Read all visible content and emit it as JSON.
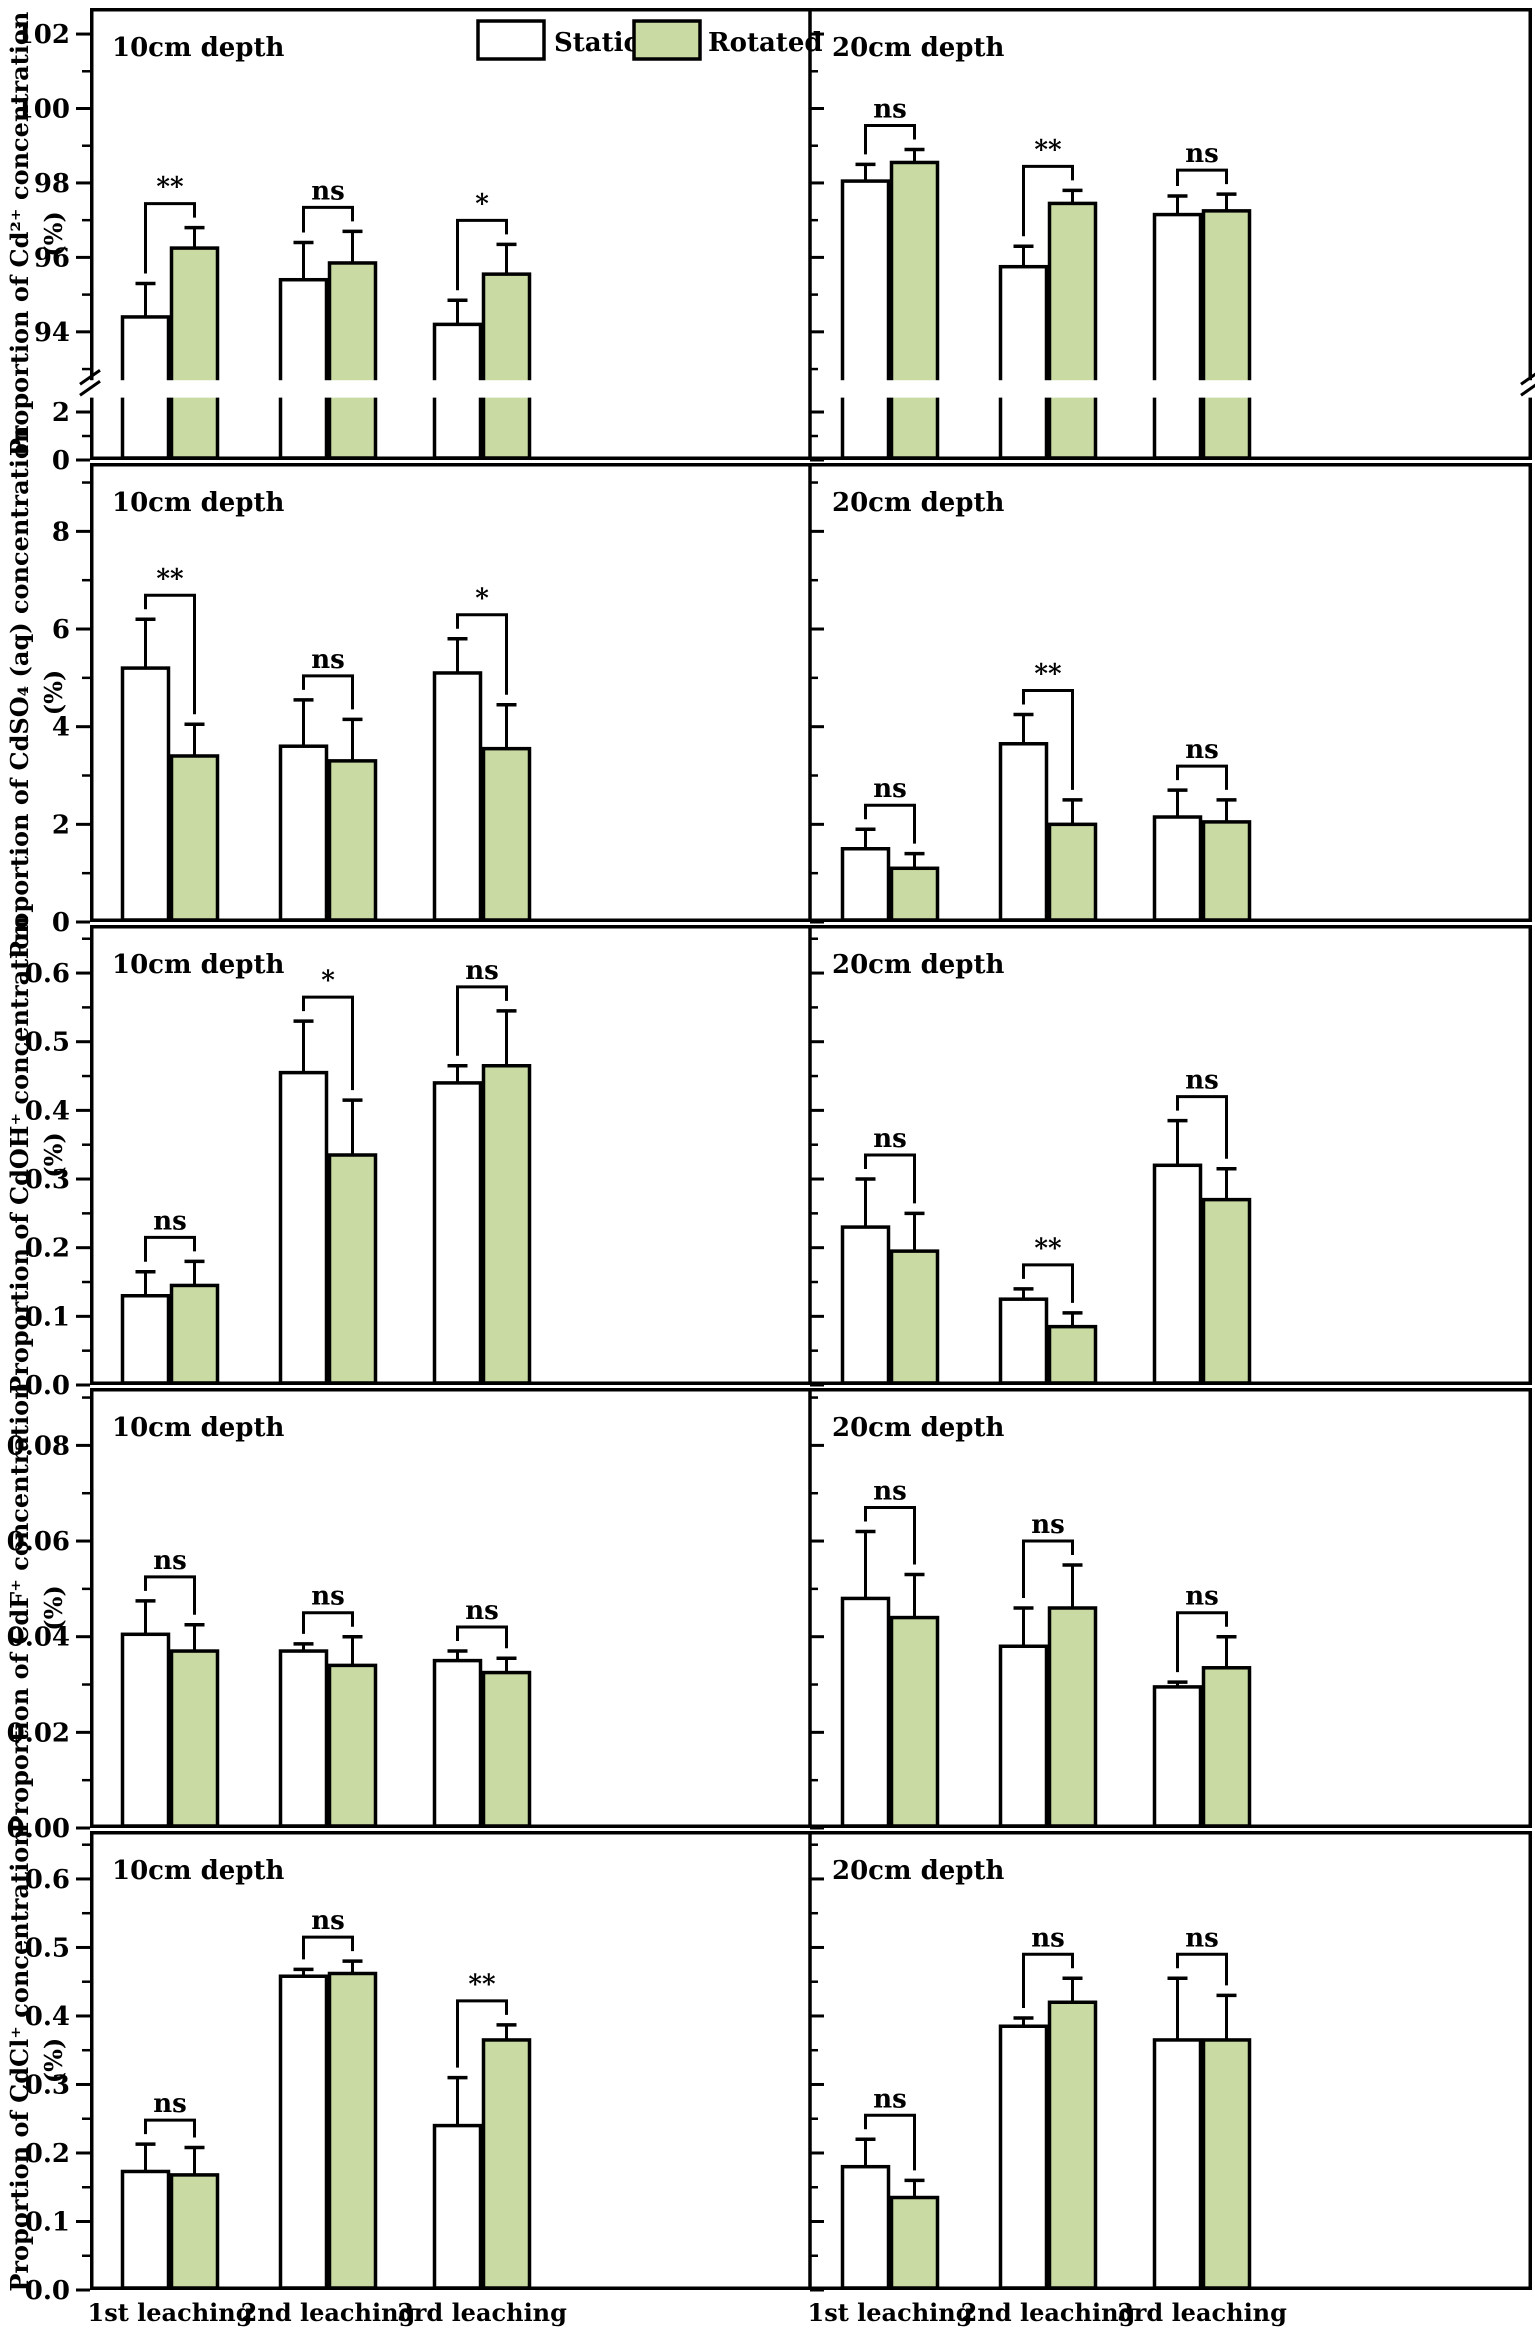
{
  "figure": {
    "legend": {
      "static_label": "Static",
      "rotated_label": "Rotated",
      "static_color": "#ffffff",
      "rotated_color": "#c9dba3",
      "border_color": "#000000"
    },
    "x_categories": [
      "1st leaching",
      "2nd leaching",
      "3rd leaching"
    ],
    "depth_labels": [
      "10cm depth",
      "20cm depth"
    ]
  },
  "chart_data": [
    {
      "type": "bar",
      "ylabel": "Proportion of Cd²⁺ concentration",
      "ylabel_unit": "(%)",
      "broken_axis": true,
      "segments": [
        {
          "domain": [
            0,
            2.6
          ],
          "tick_values": [
            0,
            2
          ],
          "ticks": [
            "0",
            "2"
          ],
          "minor": [
            1
          ]
        },
        {
          "domain": [
            92.7,
            102.7
          ],
          "tick_values": [
            94,
            96,
            98,
            100,
            102
          ],
          "ticks": [
            "94",
            "96",
            "98",
            "100",
            "102"
          ],
          "minor": [
            93,
            95,
            97,
            99,
            101
          ]
        }
      ],
      "panels": [
        {
          "depth": "10cm depth",
          "significance": [
            "**",
            "ns",
            "*"
          ],
          "series": [
            {
              "name": "Static",
              "values": [
                94.4,
                95.4,
                94.2
              ],
              "errors": [
                0.9,
                1.0,
                0.65
              ]
            },
            {
              "name": "Rotated",
              "values": [
                96.25,
                95.85,
                95.55
              ],
              "errors": [
                0.55,
                0.85,
                0.8
              ]
            }
          ]
        },
        {
          "depth": "20cm depth",
          "significance": [
            "ns",
            "**",
            "ns"
          ],
          "series": [
            {
              "name": "Static",
              "values": [
                98.05,
                95.75,
                97.15
              ],
              "errors": [
                0.45,
                0.55,
                0.5
              ]
            },
            {
              "name": "Rotated",
              "values": [
                98.55,
                97.45,
                97.25
              ],
              "errors": [
                0.35,
                0.35,
                0.45
              ]
            }
          ]
        }
      ]
    },
    {
      "type": "bar",
      "ylabel": "Proportion of CdSO₄ (aq) concentration",
      "ylabel_unit": "(%)",
      "broken_axis": false,
      "segments": [
        {
          "domain": [
            0,
            9.4
          ],
          "tick_values": [
            0,
            2,
            4,
            6,
            8
          ],
          "ticks": [
            "0",
            "2",
            "4",
            "6",
            "8"
          ],
          "minor": [
            1,
            3,
            5,
            7,
            9
          ]
        }
      ],
      "panels": [
        {
          "depth": "10cm depth",
          "significance": [
            "**",
            "ns",
            "*"
          ],
          "series": [
            {
              "name": "Static",
              "values": [
                5.2,
                3.6,
                5.1
              ],
              "errors": [
                1.0,
                0.95,
                0.7
              ]
            },
            {
              "name": "Rotated",
              "values": [
                3.4,
                3.3,
                3.55
              ],
              "errors": [
                0.65,
                0.85,
                0.9
              ]
            }
          ]
        },
        {
          "depth": "20cm depth",
          "significance": [
            "ns",
            "**",
            "ns"
          ],
          "series": [
            {
              "name": "Static",
              "values": [
                1.5,
                3.65,
                2.15
              ],
              "errors": [
                0.4,
                0.6,
                0.55
              ]
            },
            {
              "name": "Rotated",
              "values": [
                1.1,
                2.0,
                2.05
              ],
              "errors": [
                0.3,
                0.5,
                0.45
              ]
            }
          ]
        }
      ]
    },
    {
      "type": "bar",
      "ylabel": "Proportion of CdOH⁺ concentration",
      "ylabel_unit": "(%)",
      "broken_axis": false,
      "segments": [
        {
          "domain": [
            0,
            0.67
          ],
          "tick_values": [
            0,
            0.1,
            0.2,
            0.3,
            0.4,
            0.5,
            0.6
          ],
          "ticks": [
            "0.0",
            "0.1",
            "0.2",
            "0.3",
            "0.4",
            "0.5",
            "0.6"
          ],
          "minor": [
            0.05,
            0.15,
            0.25,
            0.35,
            0.45,
            0.55,
            0.65
          ]
        }
      ],
      "panels": [
        {
          "depth": "10cm depth",
          "significance": [
            "ns",
            "*",
            "ns"
          ],
          "series": [
            {
              "name": "Static",
              "values": [
                0.13,
                0.455,
                0.44
              ],
              "errors": [
                0.035,
                0.075,
                0.025
              ]
            },
            {
              "name": "Rotated",
              "values": [
                0.145,
                0.335,
                0.465
              ],
              "errors": [
                0.035,
                0.08,
                0.08
              ]
            }
          ]
        },
        {
          "depth": "20cm depth",
          "significance": [
            "ns",
            "**",
            "ns"
          ],
          "series": [
            {
              "name": "Static",
              "values": [
                0.23,
                0.125,
                0.32
              ],
              "errors": [
                0.07,
                0.015,
                0.065
              ]
            },
            {
              "name": "Rotated",
              "values": [
                0.195,
                0.085,
                0.27
              ],
              "errors": [
                0.055,
                0.02,
                0.045
              ]
            }
          ]
        }
      ]
    },
    {
      "type": "bar",
      "ylabel": "Proportion of CdF⁺ concentration",
      "ylabel_unit": "(%)",
      "broken_axis": false,
      "segments": [
        {
          "domain": [
            0,
            0.092
          ],
          "tick_values": [
            0,
            0.02,
            0.04,
            0.06,
            0.08
          ],
          "ticks": [
            "0.00",
            "0.02",
            "0.04",
            "0.06",
            "0.08"
          ],
          "minor": [
            0.01,
            0.03,
            0.05,
            0.07,
            0.09
          ]
        }
      ],
      "panels": [
        {
          "depth": "10cm depth",
          "significance": [
            "ns",
            "ns",
            "ns"
          ],
          "series": [
            {
              "name": "Static",
              "values": [
                0.0405,
                0.037,
                0.035
              ],
              "errors": [
                0.007,
                0.0015,
                0.002
              ]
            },
            {
              "name": "Rotated",
              "values": [
                0.037,
                0.034,
                0.0325
              ],
              "errors": [
                0.0055,
                0.006,
                0.003
              ]
            }
          ]
        },
        {
          "depth": "20cm depth",
          "significance": [
            "ns",
            "ns",
            "ns"
          ],
          "series": [
            {
              "name": "Static",
              "values": [
                0.048,
                0.038,
                0.0295
              ],
              "errors": [
                0.014,
                0.008,
                0.001
              ]
            },
            {
              "name": "Rotated",
              "values": [
                0.044,
                0.046,
                0.0335
              ],
              "errors": [
                0.009,
                0.009,
                0.0065
              ]
            }
          ]
        }
      ]
    },
    {
      "type": "bar",
      "ylabel": "Proportion of CdCl⁺ concentration",
      "ylabel_unit": "(%)",
      "broken_axis": false,
      "segments": [
        {
          "domain": [
            0,
            0.67
          ],
          "tick_values": [
            0,
            0.1,
            0.2,
            0.3,
            0.4,
            0.5,
            0.6
          ],
          "ticks": [
            "0.0",
            "0.1",
            "0.2",
            "0.3",
            "0.4",
            "0.5",
            "0.6"
          ],
          "minor": [
            0.05,
            0.15,
            0.25,
            0.35,
            0.45,
            0.55,
            0.65
          ]
        }
      ],
      "panels": [
        {
          "depth": "10cm depth",
          "significance": [
            "ns",
            "ns",
            "**"
          ],
          "series": [
            {
              "name": "Static",
              "values": [
                0.173,
                0.458,
                0.24
              ],
              "errors": [
                0.04,
                0.01,
                0.07
              ]
            },
            {
              "name": "Rotated",
              "values": [
                0.168,
                0.462,
                0.365
              ],
              "errors": [
                0.04,
                0.018,
                0.022
              ]
            }
          ]
        },
        {
          "depth": "20cm depth",
          "significance": [
            "ns",
            "ns",
            "ns"
          ],
          "series": [
            {
              "name": "Static",
              "values": [
                0.18,
                0.385,
                0.365
              ],
              "errors": [
                0.04,
                0.012,
                0.09
              ]
            },
            {
              "name": "Rotated",
              "values": [
                0.135,
                0.42,
                0.365
              ],
              "errors": [
                0.025,
                0.035,
                0.065
              ]
            }
          ]
        }
      ]
    }
  ]
}
